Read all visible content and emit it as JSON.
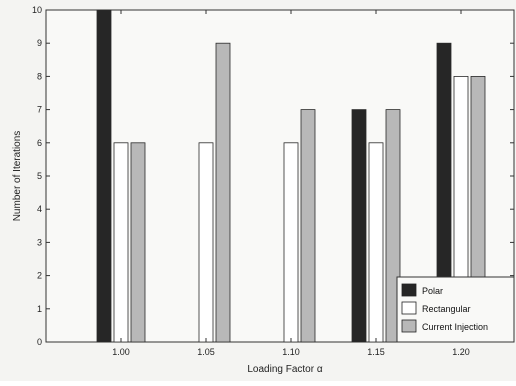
{
  "chart_data": {
    "type": "bar",
    "title": "",
    "xlabel": "Loading Factor α",
    "ylabel": "Number of Iterations",
    "categories": [
      "1.00",
      "1.05",
      "1.10",
      "1.15",
      "1.20"
    ],
    "ylim": [
      0,
      10
    ],
    "yticks": [
      0,
      1,
      2,
      3,
      4,
      5,
      6,
      7,
      8,
      9,
      10
    ],
    "grid": false,
    "legend_position": "bottom-right",
    "series": [
      {
        "name": "Polar",
        "values": [
          10,
          0,
          0,
          7,
          9
        ],
        "color": "#262626"
      },
      {
        "name": "Rectangular",
        "values": [
          6,
          6,
          6,
          6,
          8
        ],
        "color": "#ffffff"
      },
      {
        "name": "Current Injection",
        "values": [
          6,
          9,
          7,
          7,
          8
        ],
        "color": "#b8b8b8"
      }
    ]
  }
}
